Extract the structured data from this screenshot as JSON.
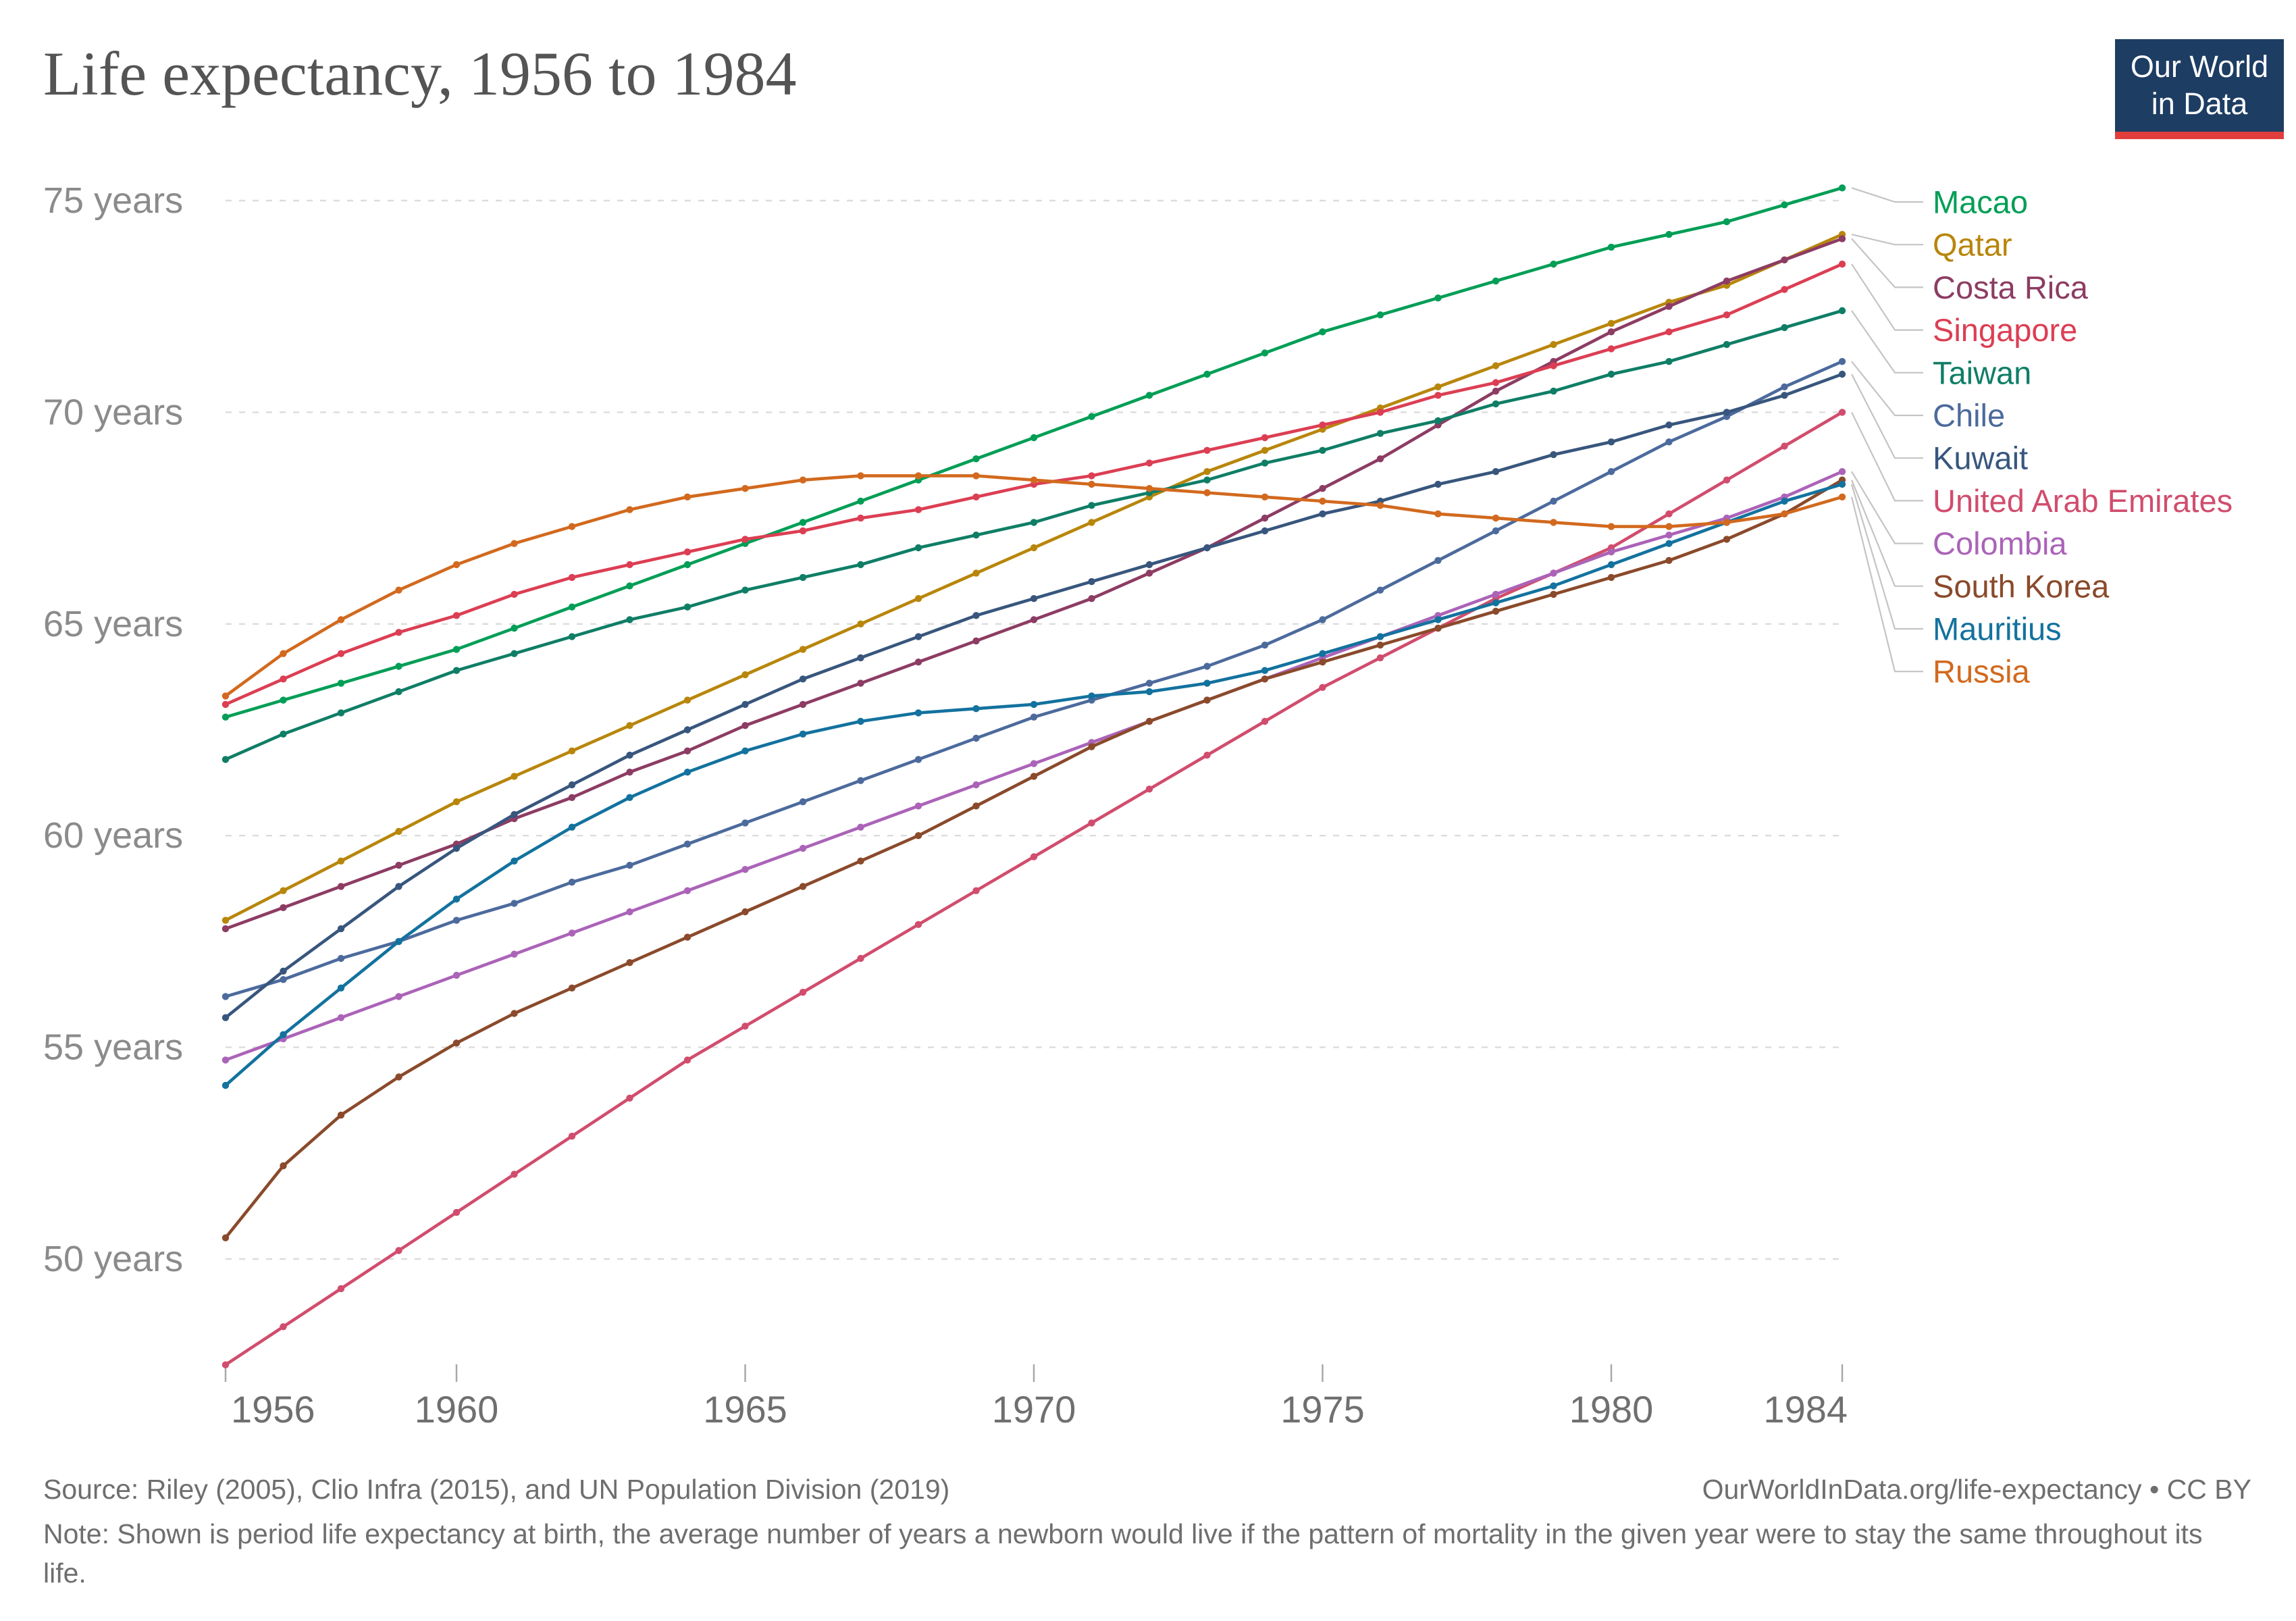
{
  "header": {
    "title": "Life expectancy, 1956 to 1984",
    "logo_line1": "Our World",
    "logo_line2": "in Data"
  },
  "footer": {
    "source": "Source: Riley (2005), Clio Infra (2015), and UN Population Division (2019)",
    "link": "OurWorldInData.org/life-expectancy • CC BY",
    "note": "Note: Shown is period life expectancy at birth, the average number of years a newborn would live if the pattern of mortality in the given year were to stay the same throughout its life."
  },
  "colors": {
    "background": "#ffffff",
    "title": "#545454",
    "grid": "#dcdcdc",
    "axis_text_y": "#8b8b8b",
    "axis_text_x": "#6f6f6f",
    "tick": "#a8a8a8",
    "legend_connector": "#c4c4c4",
    "logo_bg": "#1d3d63",
    "logo_stripe": "#e23d3d"
  },
  "chart_data": {
    "type": "line",
    "title": "Life expectancy, 1956 to 1984",
    "xlabel": "",
    "ylabel": "",
    "grid": "horizontal-dashed",
    "legend_position": "right",
    "ylim": [
      47,
      76
    ],
    "x": [
      1956,
      1957,
      1958,
      1959,
      1960,
      1961,
      1962,
      1963,
      1964,
      1965,
      1966,
      1967,
      1968,
      1969,
      1970,
      1971,
      1972,
      1973,
      1974,
      1975,
      1976,
      1977,
      1978,
      1979,
      1980,
      1981,
      1982,
      1983,
      1984
    ],
    "x_ticks": [
      1956,
      1960,
      1965,
      1970,
      1975,
      1980,
      1984
    ],
    "y_ticks": [
      {
        "value": 50,
        "label": "50 years"
      },
      {
        "value": 55,
        "label": "55 years"
      },
      {
        "value": 60,
        "label": "60 years"
      },
      {
        "value": 65,
        "label": "65 years"
      },
      {
        "value": 70,
        "label": "70 years"
      },
      {
        "value": 75,
        "label": "75 years"
      }
    ],
    "series": [
      {
        "name": "Macao",
        "slug": "macao",
        "color": "#009e56",
        "values": [
          62.8,
          63.2,
          63.6,
          64.0,
          64.4,
          64.9,
          65.4,
          65.9,
          66.4,
          66.9,
          67.4,
          67.9,
          68.4,
          68.9,
          69.4,
          69.9,
          70.4,
          70.9,
          71.4,
          71.9,
          72.3,
          72.7,
          73.1,
          73.5,
          73.9,
          74.2,
          74.5,
          74.9,
          75.3
        ]
      },
      {
        "name": "Qatar",
        "slug": "qatar",
        "color": "#b8860b",
        "values": [
          58.0,
          58.7,
          59.4,
          60.1,
          60.8,
          61.4,
          62.0,
          62.6,
          63.2,
          63.8,
          64.4,
          65.0,
          65.6,
          66.2,
          66.8,
          67.4,
          68.0,
          68.6,
          69.1,
          69.6,
          70.1,
          70.6,
          71.1,
          71.6,
          72.1,
          72.6,
          73.0,
          73.6,
          74.2
        ]
      },
      {
        "name": "Costa Rica",
        "slug": "costa-rica",
        "color": "#8d3c63",
        "values": [
          57.8,
          58.3,
          58.8,
          59.3,
          59.8,
          60.4,
          60.9,
          61.5,
          62.0,
          62.6,
          63.1,
          63.6,
          64.1,
          64.6,
          65.1,
          65.6,
          66.2,
          66.8,
          67.5,
          68.2,
          68.9,
          69.7,
          70.5,
          71.2,
          71.9,
          72.5,
          73.1,
          73.6,
          74.1
        ]
      },
      {
        "name": "Singapore",
        "slug": "singapore",
        "color": "#dc3e53",
        "values": [
          63.1,
          63.7,
          64.3,
          64.8,
          65.2,
          65.7,
          66.1,
          66.4,
          66.7,
          67.0,
          67.2,
          67.5,
          67.7,
          68.0,
          68.3,
          68.5,
          68.8,
          69.1,
          69.4,
          69.7,
          70.0,
          70.4,
          70.7,
          71.1,
          71.5,
          71.9,
          72.3,
          72.9,
          73.5
        ]
      },
      {
        "name": "Taiwan",
        "slug": "taiwan",
        "color": "#0f7e66",
        "values": [
          61.8,
          62.4,
          62.9,
          63.4,
          63.9,
          64.3,
          64.7,
          65.1,
          65.4,
          65.8,
          66.1,
          66.4,
          66.8,
          67.1,
          67.4,
          67.8,
          68.1,
          68.4,
          68.8,
          69.1,
          69.5,
          69.8,
          70.2,
          70.5,
          70.9,
          71.2,
          71.6,
          72.0,
          72.4
        ]
      },
      {
        "name": "Chile",
        "slug": "chile",
        "color": "#4c6a9c",
        "values": [
          56.2,
          56.6,
          57.1,
          57.5,
          58.0,
          58.4,
          58.9,
          59.3,
          59.8,
          60.3,
          60.8,
          61.3,
          61.8,
          62.3,
          62.8,
          63.2,
          63.6,
          64.0,
          64.5,
          65.1,
          65.8,
          66.5,
          67.2,
          67.9,
          68.6,
          69.3,
          69.9,
          70.6,
          71.2
        ]
      },
      {
        "name": "Kuwait",
        "slug": "kuwait",
        "color": "#38567d",
        "values": [
          55.7,
          56.8,
          57.8,
          58.8,
          59.7,
          60.5,
          61.2,
          61.9,
          62.5,
          63.1,
          63.7,
          64.2,
          64.7,
          65.2,
          65.6,
          66.0,
          66.4,
          66.8,
          67.2,
          67.6,
          67.9,
          68.3,
          68.6,
          69.0,
          69.3,
          69.7,
          70.0,
          70.4,
          70.9
        ]
      },
      {
        "name": "United Arab Emirates",
        "slug": "united-arab-emirates",
        "color": "#d14d6d",
        "values": [
          47.5,
          48.4,
          49.3,
          50.2,
          51.1,
          52.0,
          52.9,
          53.8,
          54.7,
          55.5,
          56.3,
          57.1,
          57.9,
          58.7,
          59.5,
          60.3,
          61.1,
          61.9,
          62.7,
          63.5,
          64.2,
          64.9,
          65.6,
          66.2,
          66.8,
          67.6,
          68.4,
          69.2,
          70.0
        ]
      },
      {
        "name": "Colombia",
        "slug": "colombia",
        "color": "#ab63b8",
        "values": [
          54.7,
          55.2,
          55.7,
          56.2,
          56.7,
          57.2,
          57.7,
          58.2,
          58.7,
          59.2,
          59.7,
          60.2,
          60.7,
          61.2,
          61.7,
          62.2,
          62.7,
          63.2,
          63.7,
          64.2,
          64.7,
          65.2,
          65.7,
          66.2,
          66.7,
          67.1,
          67.5,
          68.0,
          68.6
        ]
      },
      {
        "name": "South Korea",
        "slug": "south-korea",
        "color": "#8a4a2b",
        "values": [
          50.5,
          52.2,
          53.4,
          54.3,
          55.1,
          55.8,
          56.4,
          57.0,
          57.6,
          58.2,
          58.8,
          59.4,
          60.0,
          60.7,
          61.4,
          62.1,
          62.7,
          63.2,
          63.7,
          64.1,
          64.5,
          64.9,
          65.3,
          65.7,
          66.1,
          66.5,
          67.0,
          67.6,
          68.4
        ]
      },
      {
        "name": "Mauritius",
        "slug": "mauritius",
        "color": "#13729e",
        "values": [
          54.1,
          55.3,
          56.4,
          57.5,
          58.5,
          59.4,
          60.2,
          60.9,
          61.5,
          62.0,
          62.4,
          62.7,
          62.9,
          63.0,
          63.1,
          63.3,
          63.4,
          63.6,
          63.9,
          64.3,
          64.7,
          65.1,
          65.5,
          65.9,
          66.4,
          66.9,
          67.4,
          67.9,
          68.3
        ]
      },
      {
        "name": "Russia",
        "slug": "russia",
        "color": "#d2691e",
        "values": [
          63.3,
          64.3,
          65.1,
          65.8,
          66.4,
          66.9,
          67.3,
          67.7,
          68.0,
          68.2,
          68.4,
          68.5,
          68.5,
          68.5,
          68.4,
          68.3,
          68.2,
          68.1,
          68.0,
          67.9,
          67.8,
          67.6,
          67.5,
          67.4,
          67.3,
          67.3,
          67.4,
          67.6,
          68.0
        ]
      }
    ]
  }
}
